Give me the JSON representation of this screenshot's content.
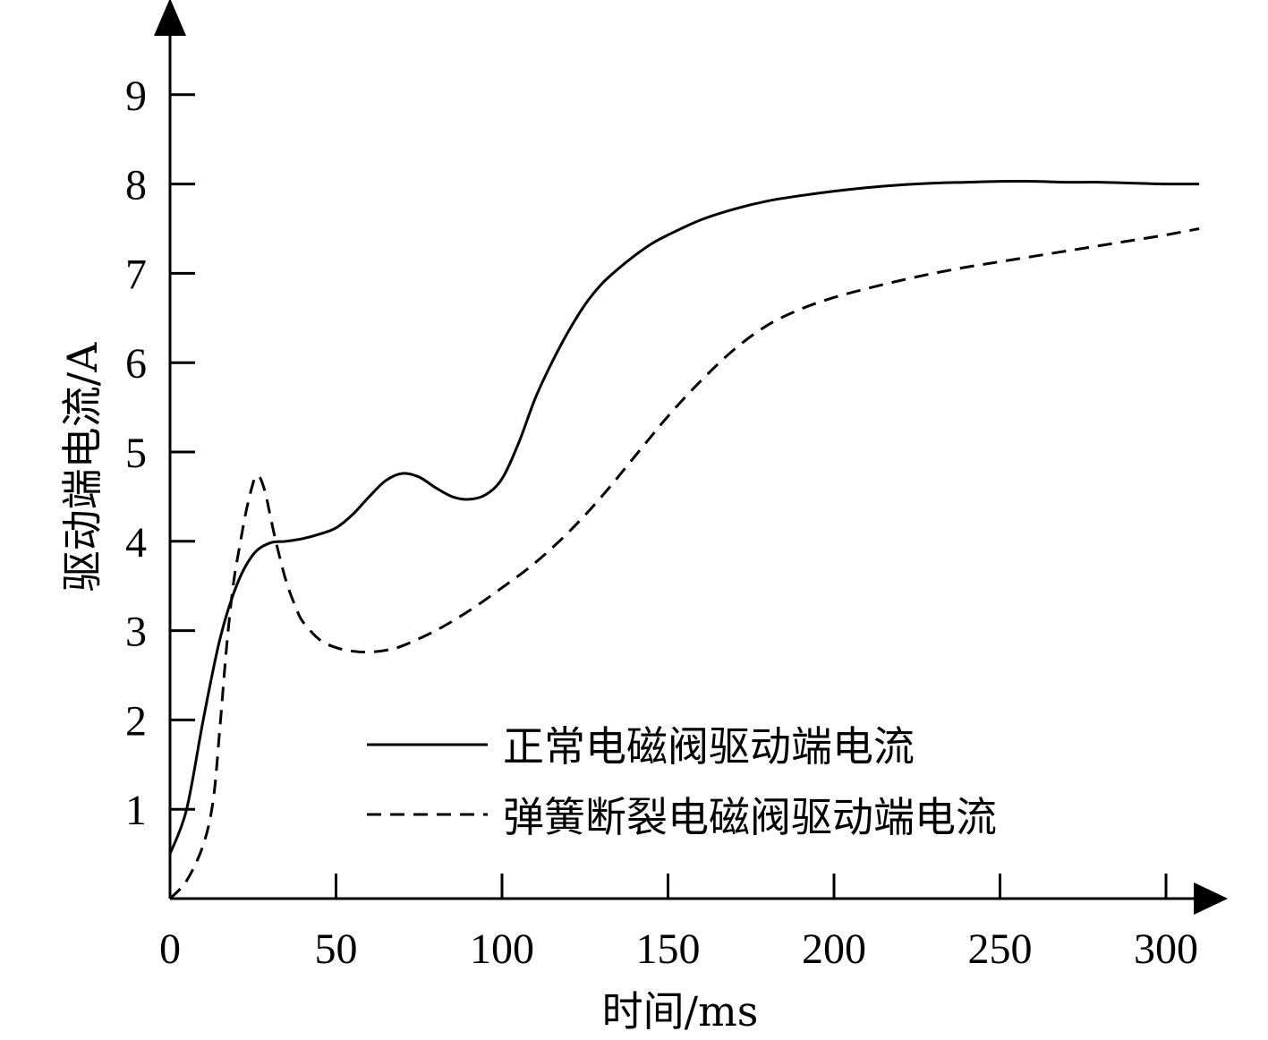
{
  "chart_data": {
    "type": "line",
    "xlabel": "时间/ms",
    "ylabel": "驱动端电流/A",
    "xlim": [
      0,
      310
    ],
    "ylim": [
      0,
      9.8
    ],
    "xticks": [
      "0",
      "50",
      "100",
      "150",
      "200",
      "250",
      "300"
    ],
    "yticks": [
      "1",
      "2",
      "3",
      "4",
      "5",
      "6",
      "7",
      "8",
      "9"
    ],
    "grid": false,
    "legend_position": "bottom-center",
    "series": [
      {
        "name": "正常电磁阀驱动端电流",
        "style": "solid",
        "color": "#000000",
        "x": [
          0,
          5,
          10,
          15,
          20,
          25,
          30,
          35,
          40,
          45,
          50,
          55,
          60,
          65,
          70,
          75,
          80,
          85,
          90,
          95,
          100,
          105,
          110,
          115,
          120,
          125,
          130,
          135,
          140,
          145,
          150,
          160,
          170,
          180,
          190,
          200,
          210,
          220,
          230,
          240,
          250,
          260,
          270,
          280,
          290,
          300,
          310
        ],
        "y": [
          0.5,
          1.0,
          2.0,
          2.9,
          3.5,
          3.85,
          3.98,
          4.0,
          4.03,
          4.08,
          4.15,
          4.3,
          4.5,
          4.68,
          4.76,
          4.72,
          4.6,
          4.5,
          4.47,
          4.52,
          4.7,
          5.1,
          5.6,
          6.0,
          6.35,
          6.65,
          6.88,
          7.05,
          7.2,
          7.33,
          7.43,
          7.6,
          7.72,
          7.81,
          7.87,
          7.92,
          7.96,
          7.99,
          8.01,
          8.02,
          8.03,
          8.03,
          8.02,
          8.02,
          8.01,
          8.0,
          8.0
        ]
      },
      {
        "name": "弹簧断裂电磁阀驱动端电流",
        "style": "dashed",
        "color": "#000000",
        "x": [
          0,
          5,
          10,
          13,
          15,
          17,
          19,
          21,
          23,
          25,
          26,
          27,
          28,
          29,
          30,
          32,
          35,
          38,
          40,
          45,
          50,
          55,
          60,
          65,
          70,
          80,
          90,
          100,
          110,
          120,
          130,
          140,
          150,
          160,
          170,
          180,
          190,
          200,
          210,
          220,
          230,
          240,
          250,
          260,
          270,
          280,
          290,
          300,
          310
        ],
        "y": [
          0,
          0.2,
          0.6,
          1.1,
          1.9,
          2.8,
          3.5,
          3.95,
          4.35,
          4.65,
          4.73,
          4.72,
          4.63,
          4.5,
          4.32,
          3.98,
          3.55,
          3.25,
          3.1,
          2.9,
          2.81,
          2.77,
          2.76,
          2.78,
          2.83,
          3.0,
          3.22,
          3.48,
          3.76,
          4.1,
          4.5,
          4.95,
          5.4,
          5.8,
          6.15,
          6.42,
          6.6,
          6.73,
          6.83,
          6.92,
          7.0,
          7.07,
          7.13,
          7.19,
          7.25,
          7.31,
          7.37,
          7.43,
          7.5
        ]
      }
    ]
  }
}
